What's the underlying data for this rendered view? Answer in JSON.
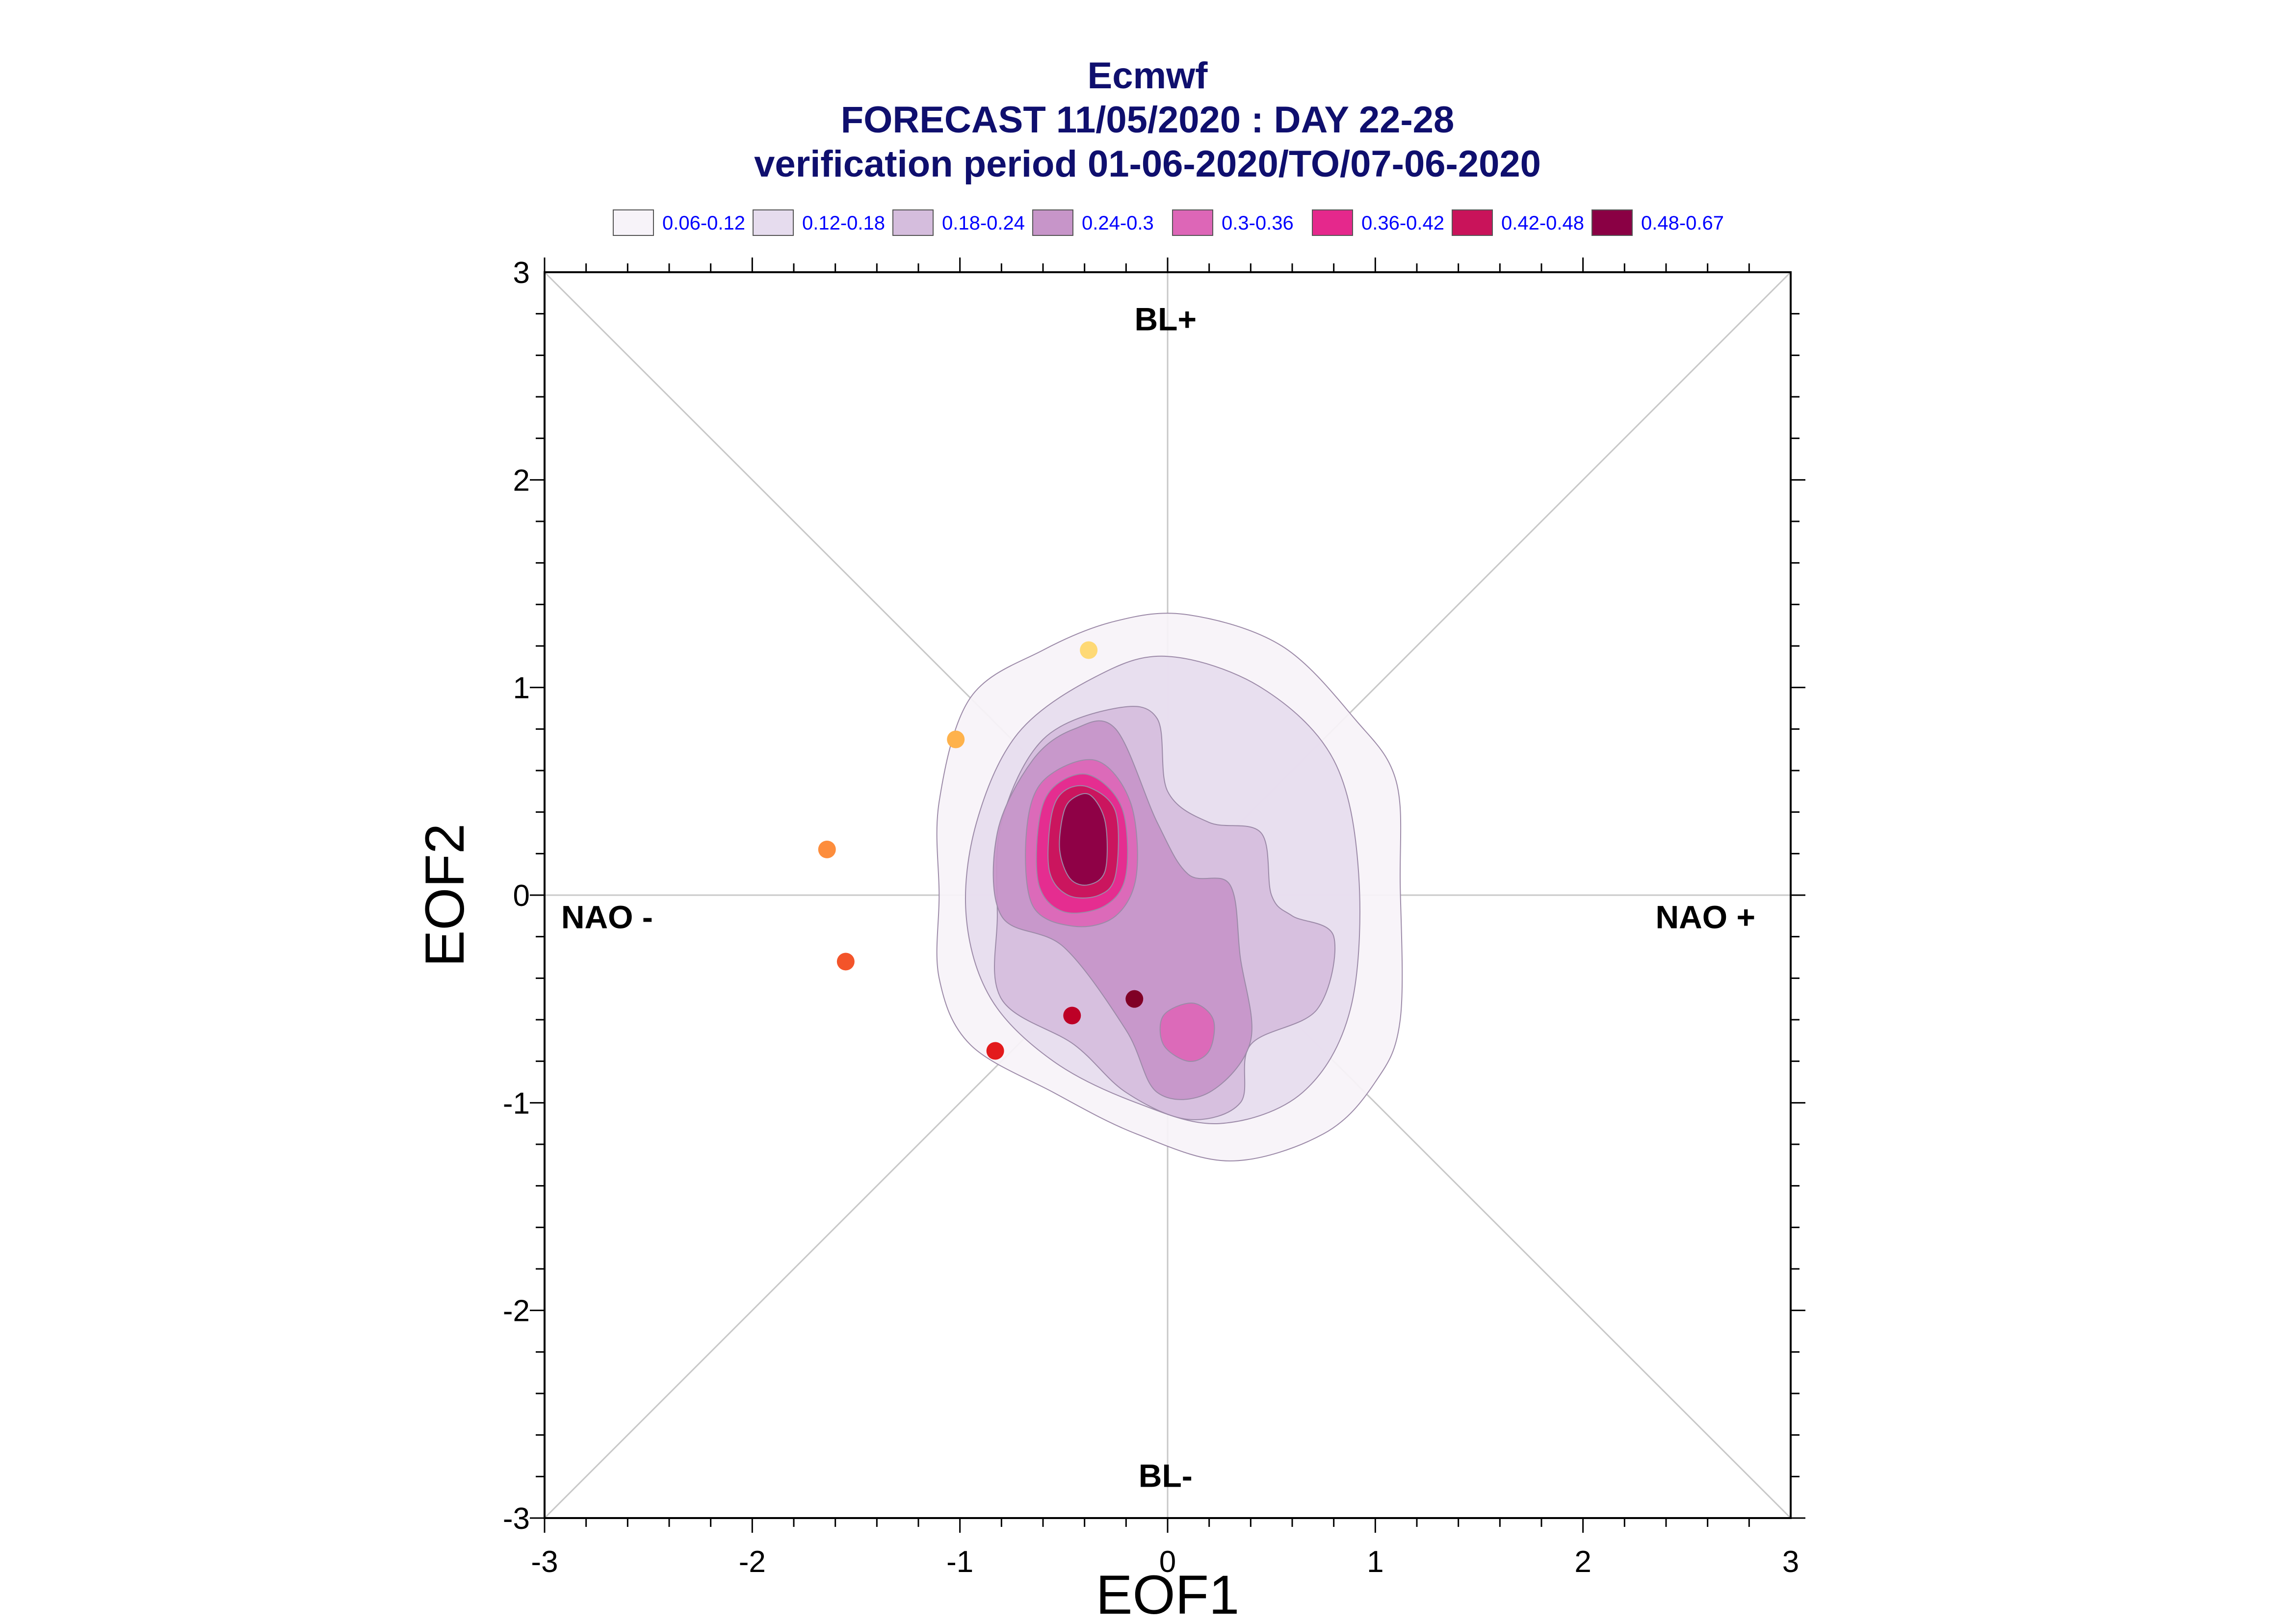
{
  "title_lines": [
    "Ecmwf",
    "FORECAST 11/05/2020 : DAY 22-28",
    "verification period 01-06-2020/TO/07-06-2020"
  ],
  "legend": [
    {
      "label": "0.06-0.12",
      "color": "#f7f3f9"
    },
    {
      "label": "0.12-0.18",
      "color": "#e6dcee"
    },
    {
      "label": "0.18-0.24",
      "color": "#d5bddd"
    },
    {
      "label": "0.24-0.3",
      "color": "#c795c9"
    },
    {
      "label": "0.3-0.36",
      "color": "#dd66b7"
    },
    {
      "label": "0.36-0.42",
      "color": "#e5288c"
    },
    {
      "label": "0.42-0.48",
      "color": "#c9135a"
    },
    {
      "label": "0.48-0.67",
      "color": "#8a0044"
    }
  ],
  "regime_labels": {
    "top": "BL+",
    "bottom": "BL-",
    "left": "NAO -",
    "right": "NAO +"
  },
  "chart_data": {
    "type": "scatter",
    "xlabel": "EOF1",
    "ylabel": "EOF2",
    "xlim": [
      -3,
      3
    ],
    "ylim": [
      -3,
      3
    ],
    "x_ticks": [
      "-3",
      "-2",
      "-1",
      "0",
      "1",
      "2",
      "3"
    ],
    "y_ticks": [
      "-3",
      "-2",
      "-1",
      "0",
      "1",
      "2",
      "3"
    ],
    "legend_placement": "top",
    "grid": false,
    "points": [
      {
        "x": -0.38,
        "y": 1.18,
        "color": "#fed976"
      },
      {
        "x": -1.02,
        "y": 0.75,
        "color": "#feb24c"
      },
      {
        "x": -1.64,
        "y": 0.22,
        "color": "#fd8d3c"
      },
      {
        "x": -1.55,
        "y": -0.32,
        "color": "#f3542a"
      },
      {
        "x": -0.83,
        "y": -0.75,
        "color": "#e31a1c"
      },
      {
        "x": -0.46,
        "y": -0.58,
        "color": "#bd0026"
      },
      {
        "x": -0.16,
        "y": -0.5,
        "color": "#800026"
      }
    ],
    "density_levels": [
      {
        "range": "0.06-0.12",
        "color": "#f7f3f9",
        "polygon": [
          [
            0.1,
            1.35
          ],
          [
            0.55,
            1.2
          ],
          [
            0.9,
            0.85
          ],
          [
            1.1,
            0.55
          ],
          [
            1.12,
            0.05
          ],
          [
            1.12,
            -0.6
          ],
          [
            1.0,
            -0.9
          ],
          [
            0.75,
            -1.15
          ],
          [
            0.3,
            -1.28
          ],
          [
            -0.15,
            -1.15
          ],
          [
            -0.55,
            -0.95
          ],
          [
            -0.95,
            -0.72
          ],
          [
            -1.1,
            -0.4
          ],
          [
            -1.1,
            0.0
          ],
          [
            -1.1,
            0.45
          ],
          [
            -0.95,
            0.95
          ],
          [
            -0.6,
            1.18
          ],
          [
            -0.25,
            1.32
          ]
        ]
      },
      {
        "range": "0.12-0.18",
        "color": "#e6dcee",
        "polygon": [
          [
            0.0,
            1.15
          ],
          [
            0.45,
            1.0
          ],
          [
            0.8,
            0.65
          ],
          [
            0.92,
            0.1
          ],
          [
            0.88,
            -0.55
          ],
          [
            0.65,
            -0.95
          ],
          [
            0.25,
            -1.1
          ],
          [
            -0.15,
            -1.0
          ],
          [
            -0.55,
            -0.8
          ],
          [
            -0.85,
            -0.5
          ],
          [
            -0.97,
            -0.1
          ],
          [
            -0.92,
            0.35
          ],
          [
            -0.72,
            0.78
          ],
          [
            -0.35,
            1.05
          ]
        ]
      },
      {
        "range": "0.18-0.24",
        "color": "#d5bddd",
        "polygon": [
          [
            -0.05,
            0.85
          ],
          [
            0.0,
            0.5
          ],
          [
            0.2,
            0.35
          ],
          [
            0.45,
            0.3
          ],
          [
            0.5,
            0.0
          ],
          [
            0.6,
            -0.1
          ],
          [
            0.8,
            -0.2
          ],
          [
            0.72,
            -0.55
          ],
          [
            0.4,
            -0.72
          ],
          [
            0.35,
            -1.0
          ],
          [
            0.1,
            -1.08
          ],
          [
            -0.2,
            -0.95
          ],
          [
            -0.45,
            -0.72
          ],
          [
            -0.8,
            -0.5
          ],
          [
            -0.82,
            -0.1
          ],
          [
            -0.8,
            0.35
          ],
          [
            -0.6,
            0.75
          ],
          [
            -0.25,
            0.9
          ]
        ]
      },
      {
        "range": "0.24-0.3",
        "color": "#c795c9",
        "polygon": [
          [
            -0.25,
            0.8
          ],
          [
            -0.05,
            0.35
          ],
          [
            0.1,
            0.1
          ],
          [
            0.3,
            0.05
          ],
          [
            0.35,
            -0.3
          ],
          [
            0.4,
            -0.7
          ],
          [
            0.2,
            -0.95
          ],
          [
            -0.05,
            -0.95
          ],
          [
            -0.2,
            -0.65
          ],
          [
            -0.5,
            -0.25
          ],
          [
            -0.8,
            -0.1
          ],
          [
            -0.82,
            0.3
          ],
          [
            -0.65,
            0.65
          ],
          [
            -0.45,
            0.8
          ]
        ]
      },
      {
        "range": "0.3-0.36",
        "color": "#dd66b7",
        "polygon": [
          [
            -0.35,
            0.65
          ],
          [
            -0.18,
            0.45
          ],
          [
            -0.15,
            0.1
          ],
          [
            -0.25,
            -0.1
          ],
          [
            -0.45,
            -0.15
          ],
          [
            -0.65,
            -0.05
          ],
          [
            -0.68,
            0.3
          ],
          [
            -0.6,
            0.55
          ]
        ]
      },
      {
        "range": "0.3-0.36",
        "color": "#dd66b7",
        "polygon": [
          [
            0.12,
            -0.52
          ],
          [
            0.22,
            -0.6
          ],
          [
            0.2,
            -0.75
          ],
          [
            0.1,
            -0.8
          ],
          [
            -0.02,
            -0.72
          ],
          [
            -0.02,
            -0.58
          ]
        ]
      },
      {
        "range": "0.36-0.42",
        "color": "#e5288c",
        "polygon": [
          [
            -0.38,
            0.58
          ],
          [
            -0.22,
            0.42
          ],
          [
            -0.2,
            0.1
          ],
          [
            -0.3,
            -0.05
          ],
          [
            -0.5,
            -0.08
          ],
          [
            -0.62,
            0.05
          ],
          [
            -0.62,
            0.35
          ],
          [
            -0.55,
            0.52
          ]
        ]
      },
      {
        "range": "0.42-0.48",
        "color": "#c9135a",
        "polygon": [
          [
            -0.38,
            0.52
          ],
          [
            -0.25,
            0.4
          ],
          [
            -0.25,
            0.1
          ],
          [
            -0.33,
            0.0
          ],
          [
            -0.48,
            0.0
          ],
          [
            -0.57,
            0.12
          ],
          [
            -0.56,
            0.38
          ],
          [
            -0.5,
            0.5
          ]
        ]
      },
      {
        "range": "0.48-0.67",
        "color": "#8a0044",
        "polygon": [
          [
            -0.37,
            0.48
          ],
          [
            -0.3,
            0.35
          ],
          [
            -0.3,
            0.12
          ],
          [
            -0.38,
            0.05
          ],
          [
            -0.47,
            0.08
          ],
          [
            -0.52,
            0.22
          ],
          [
            -0.5,
            0.4
          ],
          [
            -0.45,
            0.47
          ]
        ]
      }
    ]
  }
}
